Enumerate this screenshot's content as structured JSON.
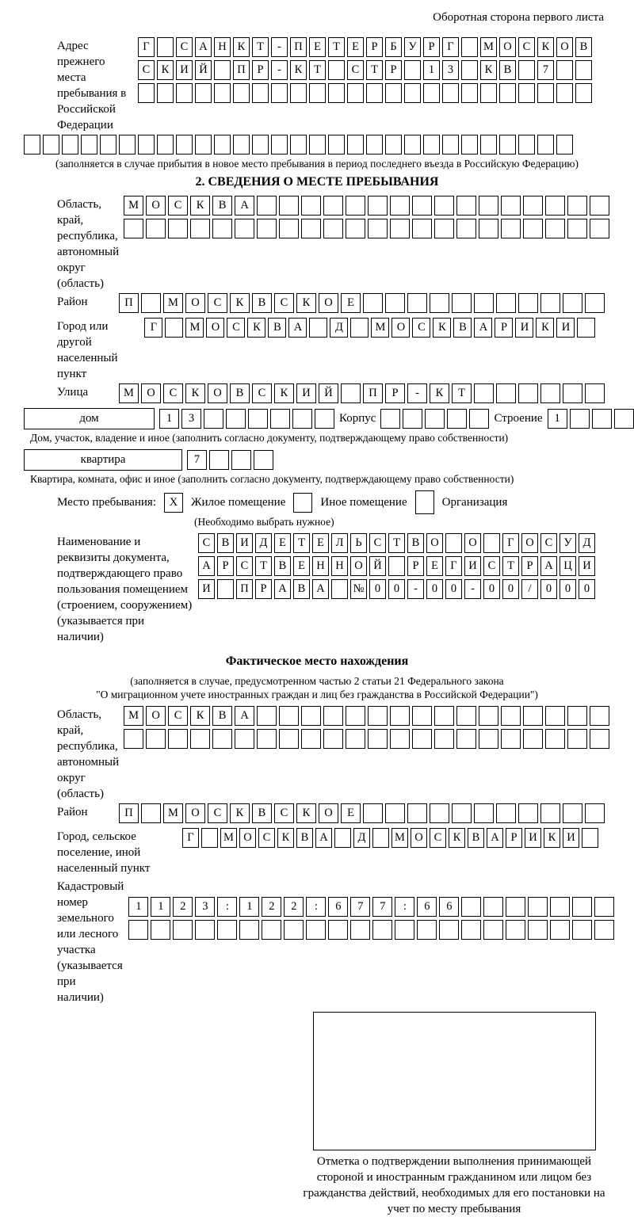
{
  "page": {
    "top_right": "Оборотная сторона первого листа"
  },
  "prev_address": {
    "label": "Адрес прежнего места пребывания в Российской Федерации",
    "rows": [
      {
        "chars": "Г САНКТ-ПЕТЕРБУРГ МОСКОВ",
        "len": 24
      },
      {
        "chars": "СКИЙ ПР-КТ СТР 13 КВ 7",
        "len": 24
      },
      {
        "chars": "",
        "len": 24
      },
      {
        "chars": "",
        "len": 29
      }
    ],
    "note": "(заполняется в случае прибытия в новое место пребывания в период последнего въезда в Российскую Федерацию)"
  },
  "section2": {
    "title": "2. СВЕДЕНИЯ О МЕСТЕ ПРЕБЫВАНИЯ",
    "region": {
      "label": "Область, край, республика, автономный округ (область)",
      "rows": [
        {
          "chars": "МОСКВА",
          "len": 22
        },
        {
          "chars": "",
          "len": 22
        }
      ]
    },
    "district": {
      "label": "Район",
      "row": {
        "chars": "П МОСКВСКОЕ",
        "len": 22
      }
    },
    "city": {
      "label": "Город или другой населенный пункт",
      "row": {
        "chars": "Г МОСКВА Д МОСКВАРИКИ",
        "len": 22
      }
    },
    "street": {
      "label": "Улица",
      "row": {
        "chars": "МОСКОВСКИЙ ПР-КТ",
        "len": 22
      }
    },
    "house": {
      "box_label": "дом",
      "number": {
        "chars": "13",
        "len": 8
      },
      "korpus_label": "Корпус",
      "korpus": {
        "chars": "",
        "len": 5
      },
      "stroenie_label": "Строение",
      "stroenie": {
        "chars": "1",
        "len": 4
      }
    },
    "house_note": "Дом, участок, владение и иное (заполнить согласно документу, подтверждающему право собственности)",
    "apartment": {
      "box_label": "квартира",
      "number": {
        "chars": "7",
        "len": 4
      }
    },
    "apartment_note": "Квартира, комната, офис и иное (заполнить согласно документу, подтверждающему право собственности)",
    "stay": {
      "label": "Место пребывания:",
      "options": [
        {
          "mark": "X",
          "label": "Жилое помещение"
        },
        {
          "mark": "",
          "label": "Иное помещение"
        },
        {
          "mark": "",
          "label": "Организация"
        }
      ],
      "note": "(Необходимо выбрать нужное)"
    },
    "document": {
      "label": "Наименование и реквизиты документа, подтверждающего право пользования помещением (строением, сооружением) (указывается при наличии)",
      "rows": [
        {
          "chars": "СВИДЕТЕЛЬСТВО О ГОСУД",
          "len": 21
        },
        {
          "chars": "АРСТВЕННОЙ РЕГИСТРАЦИ",
          "len": 21
        },
        {
          "chars": "И ПРАВА №00-00-00/000",
          "len": 21
        }
      ]
    }
  },
  "actual_location": {
    "title": "Фактическое место нахождения",
    "note_line1": "(заполняется в случае, предусмотренном частью 2 статьи 21 Федерального закона",
    "note_line2": "\"О миграционном учете иностранных граждан и лиц без гражданства в Российской Федерации\")",
    "region": {
      "label": "Область, край, республика, автономный округ (область)",
      "rows": [
        {
          "chars": "МОСКВА",
          "len": 22
        },
        {
          "chars": "",
          "len": 22
        }
      ]
    },
    "district": {
      "label": "Район",
      "row": {
        "chars": "П МОСКВСКОЕ",
        "len": 22
      }
    },
    "city": {
      "label": "Город, сельское поселение, иной населенный пункт",
      "row": {
        "chars": "Г МОСКВА Д МОСКВАРИКИ",
        "len": 22
      }
    },
    "cadastral": {
      "label": "Кадастровый номер земельного или лесного участка (указывается при наличии)",
      "rows": [
        {
          "chars": "1123:122:677:66",
          "len": 22
        },
        {
          "chars": "",
          "len": 22
        }
      ]
    },
    "stamp_note": "Отметка о подтверждении выполнения принимающей стороной и иностранным гражданином или лицом без гражданства действий, необходимых для его постановки на учет по месту пребывания"
  }
}
